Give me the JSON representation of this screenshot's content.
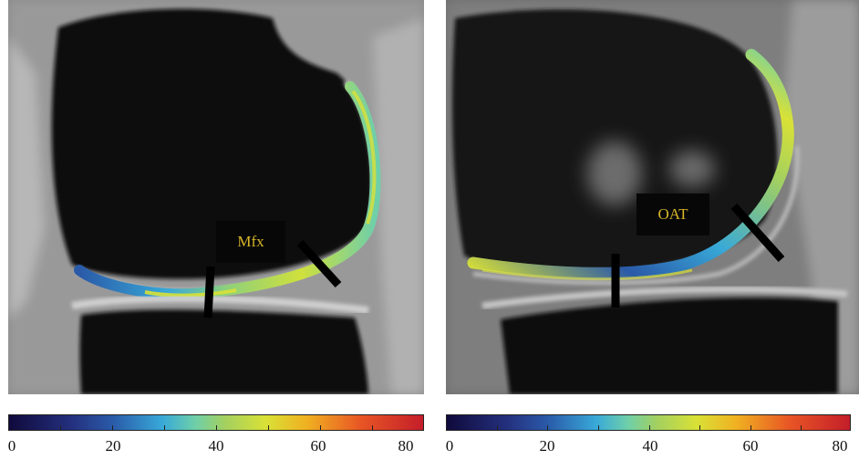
{
  "figure": {
    "left_panel": {
      "label": "Mfx"
    },
    "right_panel": {
      "label": "OAT"
    },
    "colorbar": {
      "ticks": [
        "0",
        "20",
        "40",
        "60",
        "80"
      ],
      "colors": [
        "#100a3c",
        "#24307e",
        "#2a5aa8",
        "#38a9d8",
        "#6fcfa9",
        "#a3d060",
        "#d9e136",
        "#f0b021",
        "#e85525",
        "#c41e2a"
      ]
    }
  }
}
